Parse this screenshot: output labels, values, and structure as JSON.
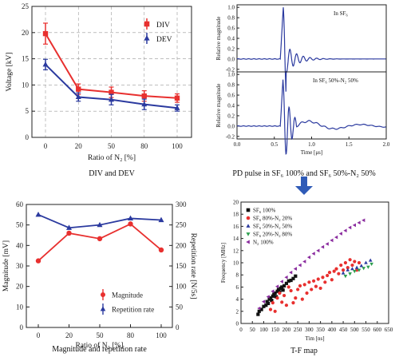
{
  "colors": {
    "red": "#e8302f",
    "blue": "#2b3a9f",
    "purple": "#8a2b9e",
    "black": "#111111",
    "teal": "#2a7a7a",
    "green": "#2e9f4f",
    "arrow": "#2f5bb7"
  },
  "chart_data": [
    {
      "id": "div-dev",
      "type": "line",
      "categories": [
        "0",
        "20",
        "50",
        "80",
        "100"
      ],
      "series": [
        {
          "name": "DIV",
          "values": [
            19.8,
            9.2,
            8.6,
            7.9,
            7.5
          ],
          "errors": [
            2.0,
            1.0,
            1.0,
            1.0,
            0.8
          ],
          "color": "#e8302f",
          "marker": "square"
        },
        {
          "name": "DEV",
          "values": [
            13.9,
            7.7,
            7.2,
            6.3,
            5.6
          ],
          "errors": [
            1.0,
            0.8,
            1.0,
            1.0,
            0.6
          ],
          "color": "#2b3a9f",
          "marker": "triangle"
        }
      ],
      "ylim": [
        0,
        25
      ],
      "yticks": [
        "0",
        "5",
        "10",
        "15",
        "20",
        "25"
      ],
      "ylabel": "Voltage [kV]",
      "xlabel": "Ratio of N₂ [%]",
      "caption": "DIV and DEV",
      "grid": true,
      "legend": "top-right"
    },
    {
      "id": "pd-pulse",
      "type": "line",
      "panels": [
        {
          "label": "In SF₆",
          "ylabel": "Relative magnitude",
          "yticks": [
            "-0.2",
            "0.0",
            "0.2",
            "0.4",
            "0.6",
            "0.8",
            "1.0"
          ],
          "ylim": [
            -0.25,
            1.05
          ]
        },
        {
          "label": "In SF₆ 50%-N₂ 50%",
          "ylabel": "Relative magnitude",
          "yticks": [
            "-0.2",
            "0.0",
            "0.2",
            "0.4",
            "0.6",
            "0.8",
            "1.0"
          ],
          "ylim": [
            -0.25,
            1.05
          ]
        }
      ],
      "xlim": [
        0,
        2.0
      ],
      "xticks": [
        "0.0",
        "0.5",
        "1.0",
        "1.5",
        "2.0"
      ],
      "xlabel": "Time [μs]",
      "caption": "PD pulse in SF₆ 100% and SF₆ 50%-N₂ 50%"
    },
    {
      "id": "mag-rep",
      "type": "line",
      "categories": [
        "0",
        "20",
        "50",
        "80",
        "100"
      ],
      "series": [
        {
          "name": "Magnitude",
          "axis": "left",
          "values": [
            32.5,
            46.0,
            43.3,
            50.5,
            37.8
          ],
          "color": "#e8302f",
          "marker": "circle"
        },
        {
          "name": "Repetition rate",
          "axis": "right",
          "values": [
            275,
            243,
            250,
            266,
            262
          ],
          "color": "#2b3a9f",
          "marker": "triangle"
        }
      ],
      "ylim": [
        0,
        60
      ],
      "yticks": [
        "0",
        "10",
        "20",
        "30",
        "40",
        "50",
        "60"
      ],
      "y2lim": [
        0,
        300
      ],
      "y2ticks": [
        "0",
        "50",
        "100",
        "150",
        "200",
        "250",
        "300"
      ],
      "ylabel": "Magnitude [mV]",
      "y2label": "Repetition rate [N/5s]",
      "xlabel": "Ratio of N₂ [%]",
      "caption": "Magnitude and repetition rate",
      "legend": "bottom-right"
    },
    {
      "id": "tf-map",
      "type": "scatter",
      "xlim": [
        0,
        650
      ],
      "xticks": [
        "0",
        "50",
        "100",
        "150",
        "200",
        "250",
        "300",
        "350",
        "400",
        "450",
        "500",
        "550",
        "600",
        "650"
      ],
      "ylim": [
        0,
        20
      ],
      "yticks": [
        "0",
        "2",
        "4",
        "6",
        "8",
        "10",
        "12",
        "14",
        "16",
        "18",
        "20"
      ],
      "xlabel": "Tim [ns]",
      "ylabel": "Frequency [MHz]",
      "caption": "T-F map",
      "series": [
        {
          "name": "SF₆ 100%",
          "color": "#111111",
          "marker": "square",
          "points": [
            [
              75,
              1.5
            ],
            [
              80,
              2.0
            ],
            [
              90,
              2.3
            ],
            [
              100,
              2.8
            ],
            [
              110,
              3.0
            ],
            [
              115,
              3.6
            ],
            [
              120,
              3.3
            ],
            [
              125,
              4.0
            ],
            [
              130,
              4.2
            ],
            [
              135,
              3.8
            ],
            [
              140,
              4.5
            ],
            [
              145,
              4.8
            ],
            [
              150,
              5.0
            ],
            [
              155,
              4.4
            ],
            [
              160,
              5.3
            ],
            [
              165,
              5.6
            ],
            [
              170,
              5.2
            ],
            [
              175,
              5.8
            ],
            [
              180,
              6.0
            ],
            [
              185,
              5.5
            ],
            [
              190,
              6.2
            ],
            [
              200,
              6.6
            ],
            [
              210,
              7.0
            ],
            [
              220,
              7.1
            ],
            [
              230,
              7.4
            ],
            [
              240,
              7.8
            ]
          ]
        },
        {
          "name": "SF₆ 80%-N₂ 20%",
          "color": "#e8302f",
          "marker": "circle",
          "points": [
            [
              130,
              2.3
            ],
            [
              140,
              3.4
            ],
            [
              150,
              2.0
            ],
            [
              160,
              4.2
            ],
            [
              170,
              5.0
            ],
            [
              180,
              3.5
            ],
            [
              190,
              4.6
            ],
            [
              200,
              3.0
            ],
            [
              210,
              6.0
            ],
            [
              220,
              5.4
            ],
            [
              230,
              3.4
            ],
            [
              240,
              4.2
            ],
            [
              250,
              5.6
            ],
            [
              260,
              6.2
            ],
            [
              270,
              4.0
            ],
            [
              280,
              6.4
            ],
            [
              290,
              5.0
            ],
            [
              300,
              6.8
            ],
            [
              310,
              5.6
            ],
            [
              320,
              7.0
            ],
            [
              330,
              6.1
            ],
            [
              340,
              7.3
            ],
            [
              350,
              5.8
            ],
            [
              360,
              7.6
            ],
            [
              370,
              6.8
            ],
            [
              380,
              7.9
            ],
            [
              390,
              8.4
            ],
            [
              400,
              7.2
            ],
            [
              410,
              8.6
            ],
            [
              420,
              9.0
            ],
            [
              430,
              8.2
            ],
            [
              440,
              9.6
            ],
            [
              450,
              8.8
            ],
            [
              460,
              10.0
            ],
            [
              470,
              9.2
            ],
            [
              480,
              10.5
            ],
            [
              490,
              9.6
            ],
            [
              500,
              10.2
            ],
            [
              510,
              8.8
            ],
            [
              520,
              10.0
            ]
          ]
        },
        {
          "name": "SF₆ 50%-N₂ 50%",
          "color": "#2b3a9f",
          "marker": "triangle",
          "points": [
            [
              450,
              8.3
            ],
            [
              470,
              8.8
            ],
            [
              490,
              9.0
            ],
            [
              510,
              9.2
            ],
            [
              530,
              9.5
            ],
            [
              550,
              10.0
            ],
            [
              570,
              10.4
            ]
          ]
        },
        {
          "name": "SF₆ 20%-N₂ 80%",
          "color": "#2e9f4f",
          "marker": "triangle-down",
          "points": [
            [
              460,
              7.8
            ],
            [
              480,
              8.2
            ],
            [
              500,
              8.6
            ],
            [
              520,
              8.8
            ],
            [
              540,
              9.1
            ],
            [
              560,
              9.3
            ],
            [
              575,
              9.8
            ]
          ]
        },
        {
          "name": "N₂ 100%",
          "color": "#8a2b9e",
          "marker": "triangle-left",
          "points": [
            [
              80,
              2.5
            ],
            [
              100,
              3.6
            ],
            [
              120,
              4.4
            ],
            [
              140,
              5.3
            ],
            [
              160,
              6.1
            ],
            [
              180,
              6.9
            ],
            [
              200,
              7.6
            ],
            [
              220,
              8.4
            ],
            [
              240,
              9.0
            ],
            [
              260,
              9.6
            ],
            [
              280,
              10.2
            ],
            [
              300,
              10.9
            ],
            [
              320,
              11.5
            ],
            [
              340,
              12.0
            ],
            [
              360,
              12.6
            ],
            [
              380,
              13.1
            ],
            [
              400,
              13.7
            ],
            [
              420,
              14.2
            ],
            [
              440,
              14.8
            ],
            [
              460,
              15.3
            ],
            [
              480,
              15.8
            ],
            [
              500,
              16.2
            ],
            [
              520,
              16.6
            ],
            [
              540,
              17.0
            ]
          ]
        }
      ],
      "legend": "top-left"
    }
  ]
}
